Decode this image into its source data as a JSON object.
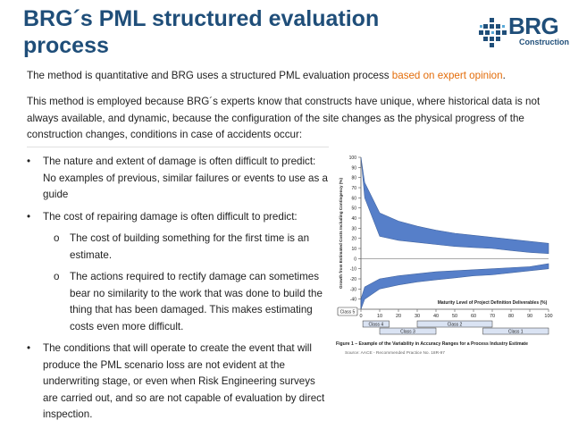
{
  "slide": {
    "title": "BRG´s PML structured evaluation process",
    "logo": {
      "word": "BRG",
      "sub": "Construction"
    },
    "p1": {
      "text": "The method is quantitative and BRG uses a structured PML evaluation process ",
      "highlight": "based on expert opinion",
      "end": "."
    },
    "p2": "This method is employed because BRG´s experts know that constructs have unique, where historical data is not always available, and dynamic, because the configuration of the site changes as the physical progress of the construction changes, conditions in case of accidents occur:",
    "bullets": [
      "The nature and extent of damage is often difficult to predict: No examples of previous, similar failures or events to use as a guide",
      "The cost of repairing damage is often difficult to predict:",
      " The conditions that will operate to create the event that will produce the PML scenario loss are not evident at the underwriting stage, or even when Risk Engineering surveys are carried out, and so are not capable of evaluation by direct inspection."
    ],
    "sub_bullets": [
      "The cost of building something for the first time is an estimate.",
      "The actions required to rectify damage can sometimes bear no similarity to the work that was done to build the thing that has been damaged. This makes estimating costs even more difficult."
    ],
    "bullet_marker": "•",
    "sub_marker": "o"
  },
  "chart_data": {
    "type": "area",
    "ylabel": "Growth from Estimated Costs Including Contingency (%)",
    "xlabel": "Maturity Level of Project Definition Deliverables (%)",
    "xlim": [
      0,
      100
    ],
    "ylim": [
      -50,
      100
    ],
    "x_ticks": [
      0,
      10,
      20,
      30,
      40,
      50,
      60,
      70,
      80,
      90,
      100
    ],
    "y_ticks": [
      100,
      90,
      80,
      70,
      60,
      50,
      40,
      30,
      20,
      10,
      0,
      -10,
      -20,
      -30,
      -40,
      -50
    ],
    "series": [
      {
        "x": [
          0,
          2,
          10,
          20,
          30,
          40,
          50,
          60,
          70,
          80,
          90,
          100
        ],
        "upper": [
          100,
          75,
          45,
          37,
          32,
          28,
          25,
          23,
          21,
          19,
          17,
          15
        ],
        "lower": [
          100,
          60,
          22,
          18,
          16,
          14,
          12,
          11,
          10,
          8,
          6,
          5
        ]
      },
      {
        "x": [
          0,
          2,
          10,
          20,
          30,
          40,
          50,
          60,
          70,
          80,
          90,
          100
        ],
        "upper": [
          -40,
          -28,
          -20,
          -17,
          -15,
          -13,
          -12,
          -11,
          -10,
          -9,
          -8,
          -5
        ],
        "lower": [
          -50,
          -40,
          -30,
          -26,
          -23,
          -21,
          -19,
          -17,
          -16,
          -14,
          -12,
          -10
        ]
      }
    ],
    "classes": [
      {
        "label": "Class 5",
        "from": 0,
        "to": 2
      },
      {
        "label": "Class 4",
        "from": 1,
        "to": 15
      },
      {
        "label": "Class 3",
        "from": 10,
        "to": 40
      },
      {
        "label": "Class 2",
        "from": 30,
        "to": 70
      },
      {
        "label": "Class 1",
        "from": 65,
        "to": 100
      }
    ],
    "caption": "Figure 1 – Example of the Variability in Accuracy Ranges for a Process Industry Estimate",
    "source": "Source: AACE - Recommended Practice No. 18R-97"
  }
}
